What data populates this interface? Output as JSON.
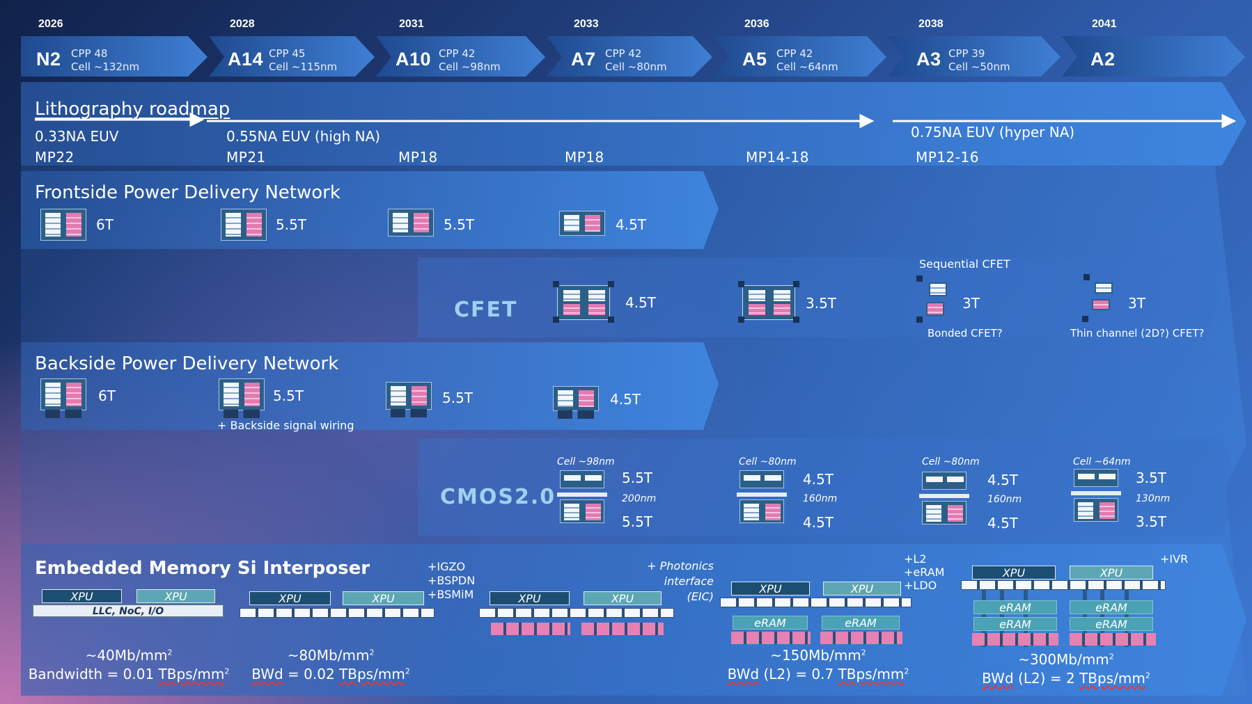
{
  "timeline": [
    {
      "year": "2026",
      "node": "N2",
      "cpp": "CPP 48",
      "cell": "Cell ~132nm"
    },
    {
      "year": "2028",
      "node": "A14",
      "cpp": "CPP 45",
      "cell": "Cell ~115nm"
    },
    {
      "year": "2031",
      "node": "A10",
      "cpp": "CPP 42",
      "cell": "Cell ~98nm"
    },
    {
      "year": "2033",
      "node": "A7",
      "cpp": "CPP 42",
      "cell": "Cell ~80nm"
    },
    {
      "year": "2036",
      "node": "A5",
      "cpp": "CPP 42",
      "cell": "Cell ~64nm"
    },
    {
      "year": "2038",
      "node": "A3",
      "cpp": "CPP 39",
      "cell": "Cell ~50nm"
    },
    {
      "year": "2041",
      "node": "A2",
      "cpp": "",
      "cell": ""
    }
  ],
  "litho": {
    "title": "Lithography roadmap",
    "euv1": "0.33NA EUV",
    "euv2": "0.55NA EUV (high NA)",
    "euv3": "0.75NA EUV (hyper NA)",
    "mp": [
      "MP22",
      "MP21",
      "MP18",
      "MP18",
      "MP14-18",
      "MP12-16"
    ]
  },
  "fspdn": {
    "title": "Frontside Power Delivery Network",
    "tracks": [
      "6T",
      "5.5T",
      "5.5T",
      "4.5T"
    ]
  },
  "cfet": {
    "label": "CFET",
    "tracks": [
      "4.5T",
      "3.5T",
      "3T",
      "3T"
    ],
    "sequential": "Sequential CFET",
    "bonded": "Bonded CFET?",
    "thin": "Thin channel (2D?) CFET?"
  },
  "bspdn": {
    "title": "Backside Power Delivery Network",
    "tracks": [
      "6T",
      "5.5T",
      "5.5T",
      "4.5T"
    ],
    "note": "+ Backside signal wiring"
  },
  "cmos2": {
    "label": "CMOS2.0",
    "columns": [
      {
        "cell": "Cell ~98nm",
        "top": "5.5T",
        "pitch": "200nm",
        "bottom": "5.5T"
      },
      {
        "cell": "Cell ~80nm",
        "top": "4.5T",
        "pitch": "160nm",
        "bottom": "4.5T"
      },
      {
        "cell": "Cell ~80nm",
        "top": "4.5T",
        "pitch": "160nm",
        "bottom": "4.5T"
      },
      {
        "cell": "Cell ~64nm",
        "top": "3.5T",
        "pitch": "130nm",
        "bottom": "3.5T"
      }
    ]
  },
  "interposer": {
    "title": "Embedded Memory Si Interposer",
    "xpu": "XPU",
    "eram": "eRAM",
    "llc": "LLC, NoC, I/O",
    "adds1": [
      "+IGZO",
      "+BSPDN",
      "+BSMiM"
    ],
    "adds2": [
      "+ Photonics",
      "interface (EIC)"
    ],
    "adds3": [
      "+L2",
      "+eRAM",
      "+LDO"
    ],
    "adds4": [
      "+IVR"
    ],
    "stats": [
      {
        "density": "~40Mb/mm",
        "bw_prefix": "Bandwidth",
        "bw_value": " = 0.01 ",
        "bw_unit": "TBps/mm"
      },
      {
        "density": "~80Mb/mm",
        "bw_prefix": "BWd",
        "bw_value": " = 0.02 ",
        "bw_unit": "TBps/mm"
      },
      {
        "density": "~150Mb/mm",
        "bw_prefix": "BWd",
        "bw_value": " (L2) = 0.7 ",
        "bw_unit": "TBps/mm"
      },
      {
        "density": "~300Mb/mm",
        "bw_prefix": "BWd",
        "bw_value": " (L2) = 2 ",
        "bw_unit": "TBps/mm"
      }
    ],
    "sup": "2"
  }
}
